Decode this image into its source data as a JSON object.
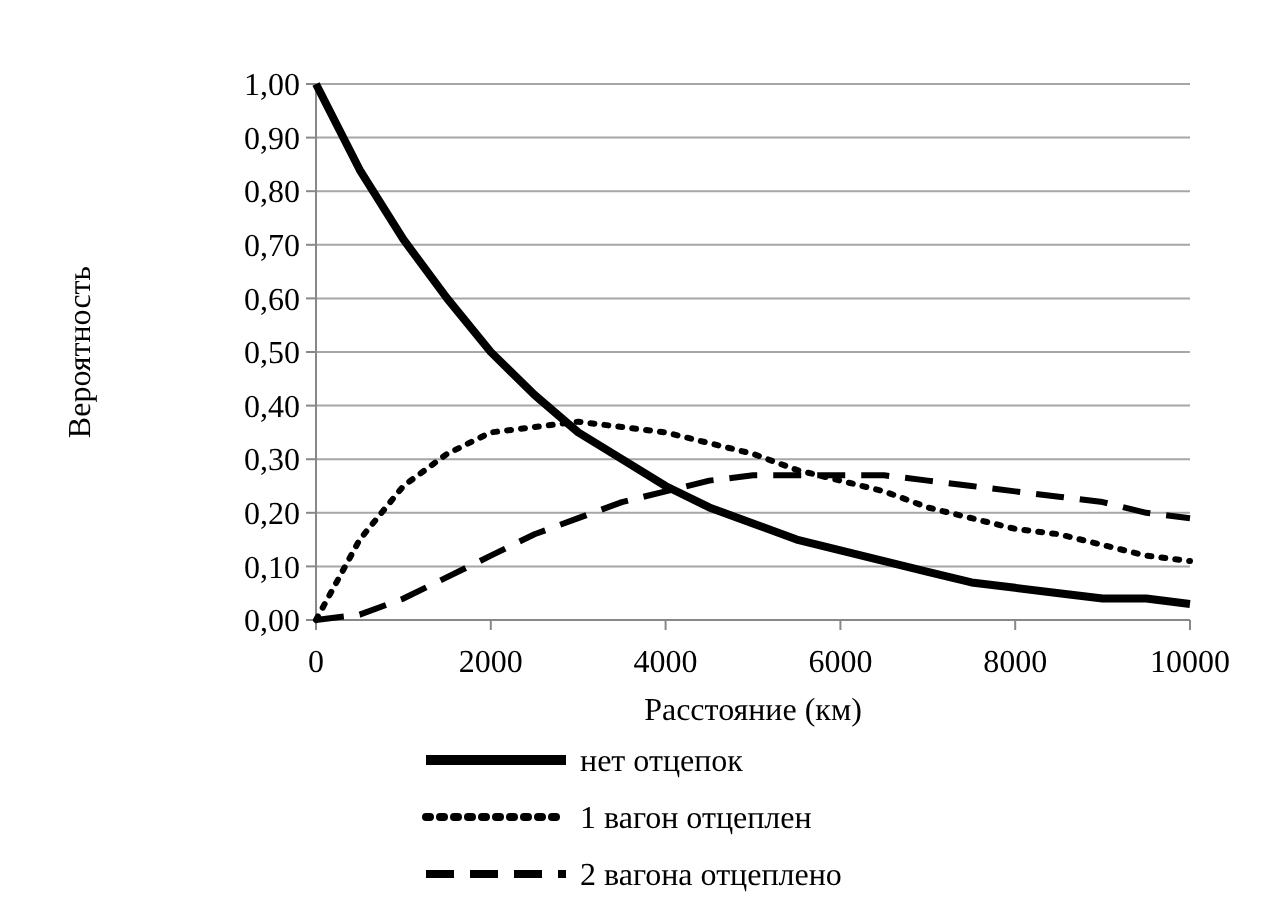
{
  "chart_data": {
    "type": "line",
    "xlabel": "Расстояние (км)",
    "ylabel": "Вероятность",
    "x": [
      0,
      500,
      1000,
      1500,
      2000,
      2500,
      3000,
      3500,
      4000,
      4500,
      5000,
      5500,
      6000,
      6500,
      7000,
      7500,
      8000,
      8500,
      9000,
      9500,
      10000
    ],
    "series": [
      {
        "name": "нет отцепок",
        "color": "#000000",
        "line_style": "solid",
        "values": [
          1,
          0.84,
          0.71,
          0.6,
          0.5,
          0.42,
          0.35,
          0.3,
          0.25,
          0.21,
          0.18,
          0.15,
          0.13,
          0.11,
          0.09,
          0.07,
          0.06,
          0.05,
          0.04,
          0.04,
          0.03
        ]
      },
      {
        "name": "1 вагон отцеплен",
        "color": "#000000",
        "line_style": "dotted",
        "values": [
          0,
          0.15,
          0.25,
          0.31,
          0.35,
          0.36,
          0.37,
          0.36,
          0.35,
          0.33,
          0.31,
          0.28,
          0.26,
          0.24,
          0.21,
          0.19,
          0.17,
          0.16,
          0.14,
          0.12,
          0.11
        ]
      },
      {
        "name": "2 вагона отцеплено",
        "color": "#000000",
        "line_style": "dashed",
        "values": [
          0,
          0.01,
          0.04,
          0.08,
          0.12,
          0.16,
          0.19,
          0.22,
          0.24,
          0.26,
          0.27,
          0.27,
          0.27,
          0.27,
          0.26,
          0.25,
          0.24,
          0.23,
          0.22,
          0.2,
          0.19
        ]
      }
    ],
    "xlim": [
      0,
      10000
    ],
    "xticks": [
      0,
      2000,
      4000,
      6000,
      8000,
      10000
    ],
    "ylim": [
      0,
      1
    ],
    "yticks": [
      {
        "value": 0,
        "label": "0,00"
      },
      {
        "value": 0.1,
        "label": "0,10"
      },
      {
        "value": 0.2,
        "label": "0,20"
      },
      {
        "value": 0.3,
        "label": "0,30"
      },
      {
        "value": 0.4,
        "label": "0,40"
      },
      {
        "value": 0.5,
        "label": "0,50"
      },
      {
        "value": 0.6,
        "label": "0,60"
      },
      {
        "value": 0.7,
        "label": "0,70"
      },
      {
        "value": 0.8,
        "label": "0,80"
      },
      {
        "value": 0.9,
        "label": "0,90"
      },
      {
        "value": 1,
        "label": "1,00"
      }
    ],
    "grid": "y",
    "legend": "bottom",
    "marker": "none"
  }
}
